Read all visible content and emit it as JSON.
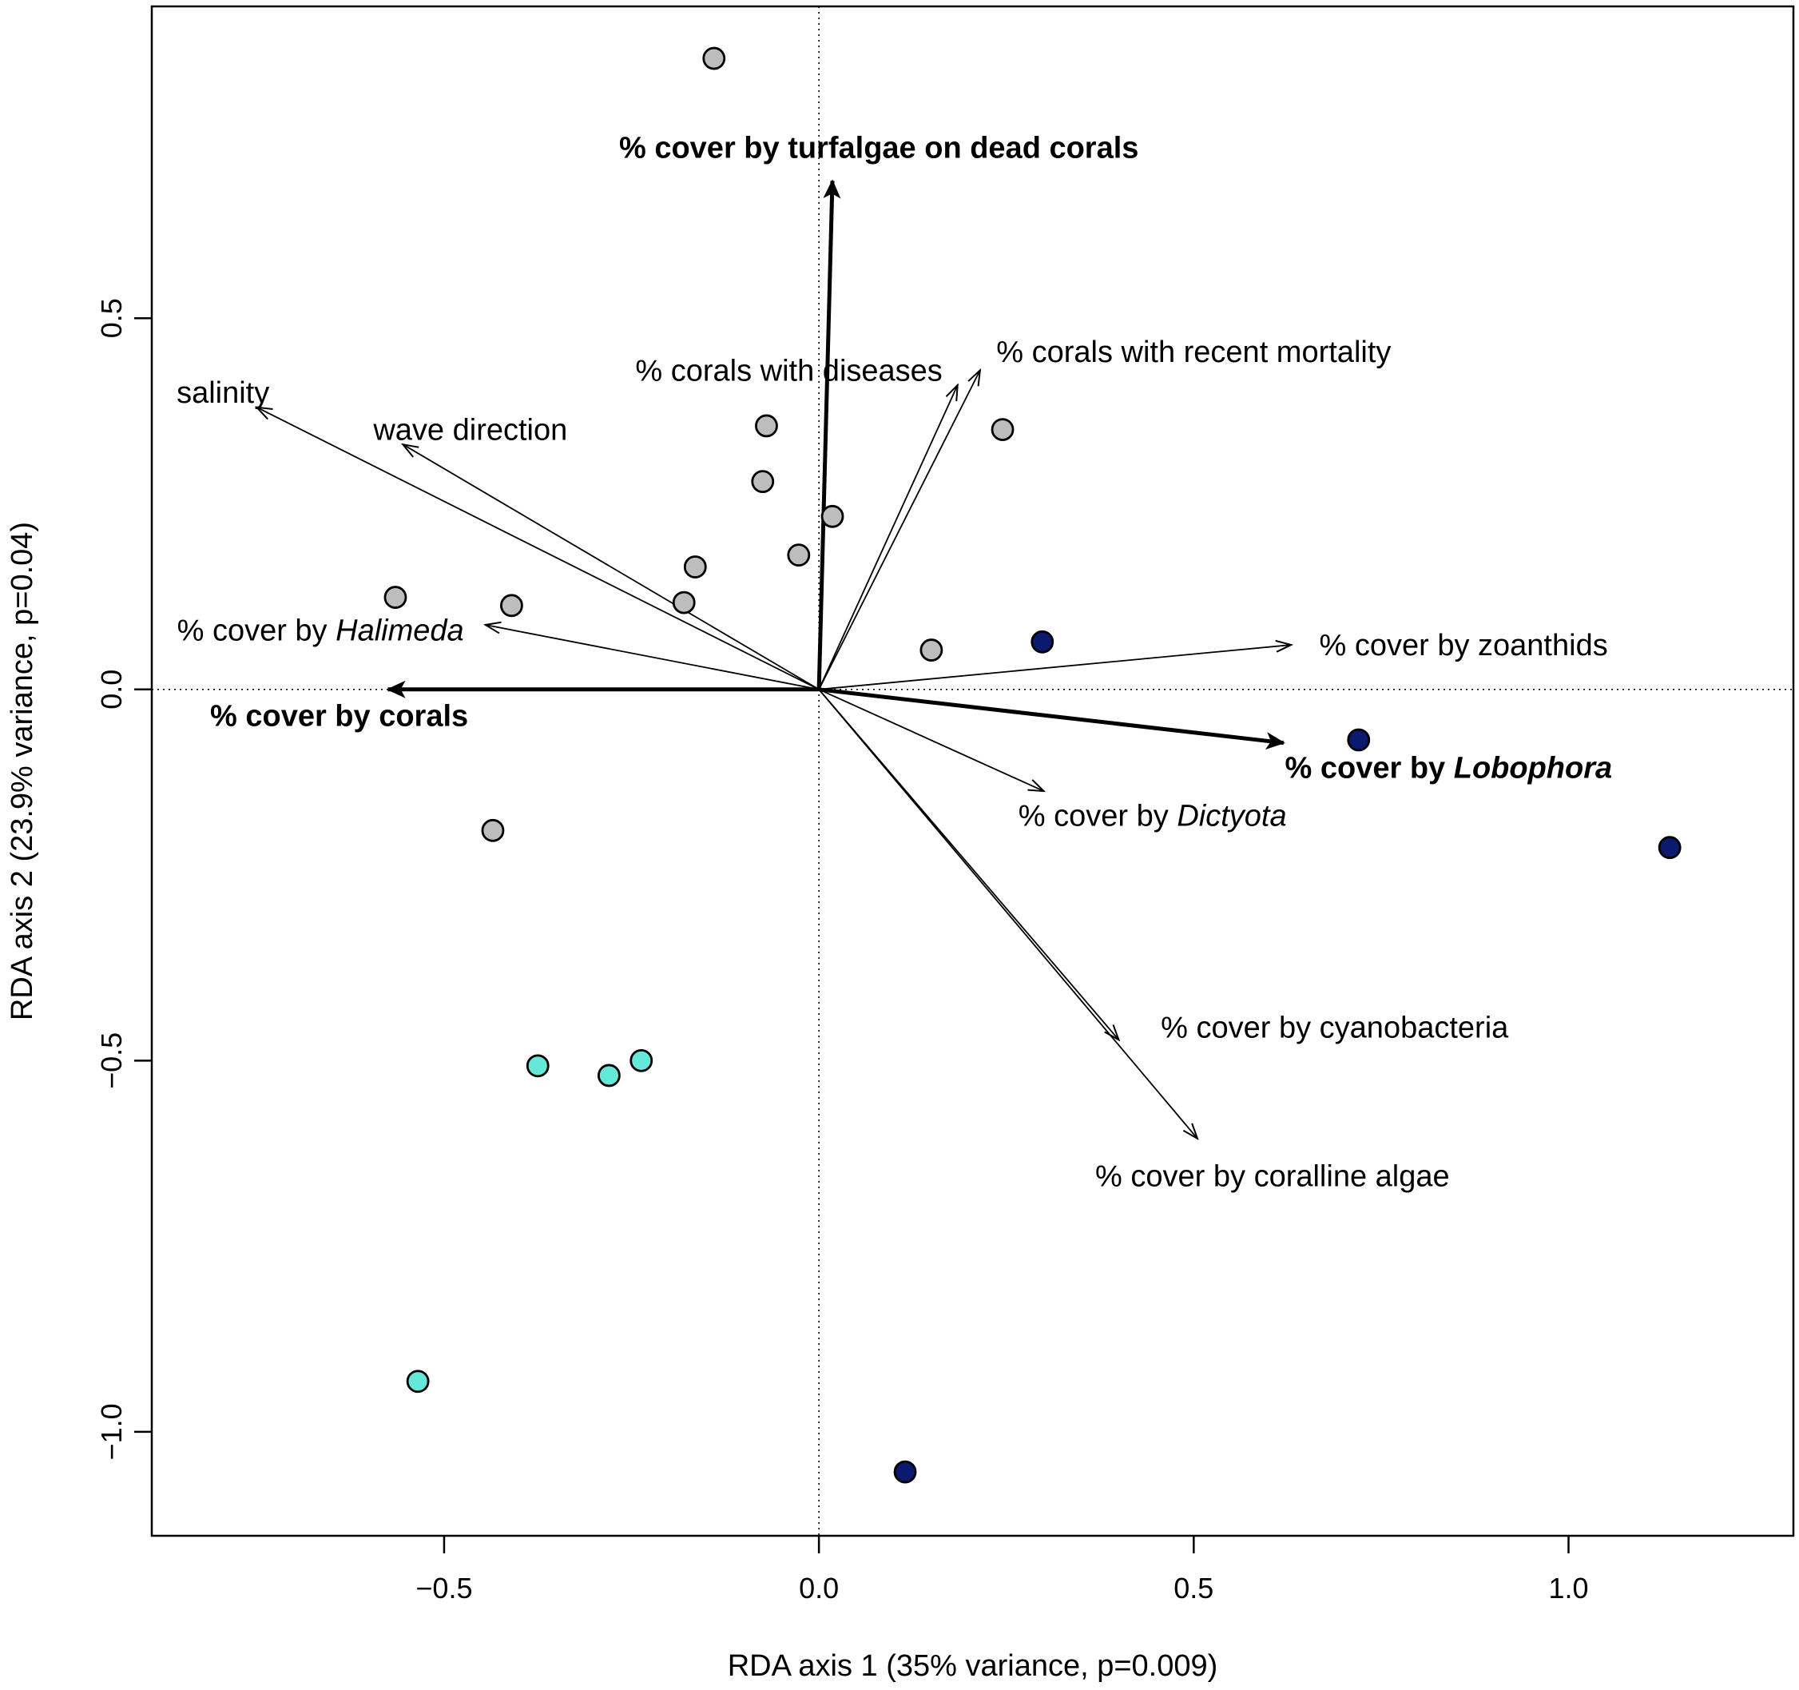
{
  "chart_data": {
    "type": "scatter",
    "subtype": "rda-biplot",
    "xlabel": "RDA axis 1 (35% variance, p=0.009)",
    "ylabel": "RDA axis 2 (23.9% variance, p=0.04)",
    "xlim": [
      -0.89,
      1.3
    ],
    "ylim": [
      -1.14,
      0.92
    ],
    "xticks": [
      -0.5,
      0.0,
      0.5,
      1.0
    ],
    "xtick_labels": [
      "−0.5",
      "0.0",
      "0.5",
      "1.0"
    ],
    "yticks": [
      -1.0,
      -0.5,
      0.0,
      0.5
    ],
    "ytick_labels": [
      "−1.0",
      "−0.5",
      "0.0",
      "0.5"
    ],
    "reference_lines": {
      "x": 0,
      "y": 0,
      "style": "dotted"
    },
    "colors": {
      "grey": "#bdbdbd",
      "navy": "#0b1a6e",
      "cyan": "#66e8d8",
      "edge": "#000000"
    },
    "points": [
      {
        "x": -0.14,
        "y": 0.85,
        "group": "grey"
      },
      {
        "x": -0.07,
        "y": 0.355,
        "group": "grey"
      },
      {
        "x": -0.075,
        "y": 0.28,
        "group": "grey"
      },
      {
        "x": 0.018,
        "y": 0.233,
        "group": "grey"
      },
      {
        "x": -0.027,
        "y": 0.181,
        "group": "grey"
      },
      {
        "x": -0.165,
        "y": 0.165,
        "group": "grey"
      },
      {
        "x": -0.18,
        "y": 0.117,
        "group": "grey"
      },
      {
        "x": -0.41,
        "y": 0.113,
        "group": "grey"
      },
      {
        "x": -0.565,
        "y": 0.124,
        "group": "grey"
      },
      {
        "x": 0.245,
        "y": 0.35,
        "group": "grey"
      },
      {
        "x": 0.15,
        "y": 0.053,
        "group": "grey"
      },
      {
        "x": -0.435,
        "y": -0.19,
        "group": "grey"
      },
      {
        "x": 0.298,
        "y": 0.064,
        "group": "navy"
      },
      {
        "x": 0.72,
        "y": -0.068,
        "group": "navy"
      },
      {
        "x": 1.135,
        "y": -0.213,
        "group": "navy"
      },
      {
        "x": 0.115,
        "y": -1.054,
        "group": "navy"
      },
      {
        "x": -0.375,
        "y": -0.507,
        "group": "cyan"
      },
      {
        "x": -0.28,
        "y": -0.52,
        "group": "cyan"
      },
      {
        "x": -0.237,
        "y": -0.5,
        "group": "cyan"
      },
      {
        "x": -0.535,
        "y": -0.932,
        "group": "cyan"
      }
    ],
    "arrows": [
      {
        "label": "% cover by turfalgae on dead corals",
        "x": 0.018,
        "y": 0.685,
        "bold": true,
        "label_x": 0.08,
        "label_y": 0.73
      },
      {
        "label": "% cover by corals",
        "x": -0.575,
        "y": 0.0,
        "bold": true,
        "label_x": -0.64,
        "label_y": -0.035
      },
      {
        "label": "% cover by Lobophora",
        "italic": "Lobophora",
        "x": 0.62,
        "y": -0.072,
        "bold": true,
        "label_x": 0.84,
        "label_y": -0.105
      },
      {
        "label": "% corals with diseases",
        "x": 0.185,
        "y": 0.41,
        "bold": false,
        "label_x": -0.04,
        "label_y": 0.43
      },
      {
        "label": "% corals with recent mortality",
        "x": 0.215,
        "y": 0.43,
        "bold": false,
        "label_x": 0.5,
        "label_y": 0.455
      },
      {
        "label": "salinity",
        "x": -0.75,
        "y": 0.38,
        "bold": false,
        "label_x": -0.795,
        "label_y": 0.4
      },
      {
        "label": "wave direction",
        "x": -0.555,
        "y": 0.33,
        "bold": false,
        "label_x": -0.465,
        "label_y": 0.35
      },
      {
        "label": "% cover by Halimeda",
        "italic": "Halimeda",
        "x": -0.445,
        "y": 0.087,
        "bold": false,
        "label_x": -0.665,
        "label_y": 0.08
      },
      {
        "label": "% cover by zoanthids",
        "x": 0.63,
        "y": 0.06,
        "bold": false,
        "label_x": 0.86,
        "label_y": 0.06
      },
      {
        "label": "% cover by Dictyota",
        "italic": "Dictyota",
        "x": 0.3,
        "y": -0.137,
        "bold": false,
        "label_x": 0.445,
        "label_y": -0.17
      },
      {
        "label": "% cover by cyanobacteria",
        "x": 0.4,
        "y": -0.472,
        "bold": false,
        "label_x": 0.688,
        "label_y": -0.455
      },
      {
        "label": "% cover by coralline algae",
        "x": 0.505,
        "y": -0.605,
        "bold": false,
        "label_x": 0.605,
        "label_y": -0.655
      }
    ]
  }
}
